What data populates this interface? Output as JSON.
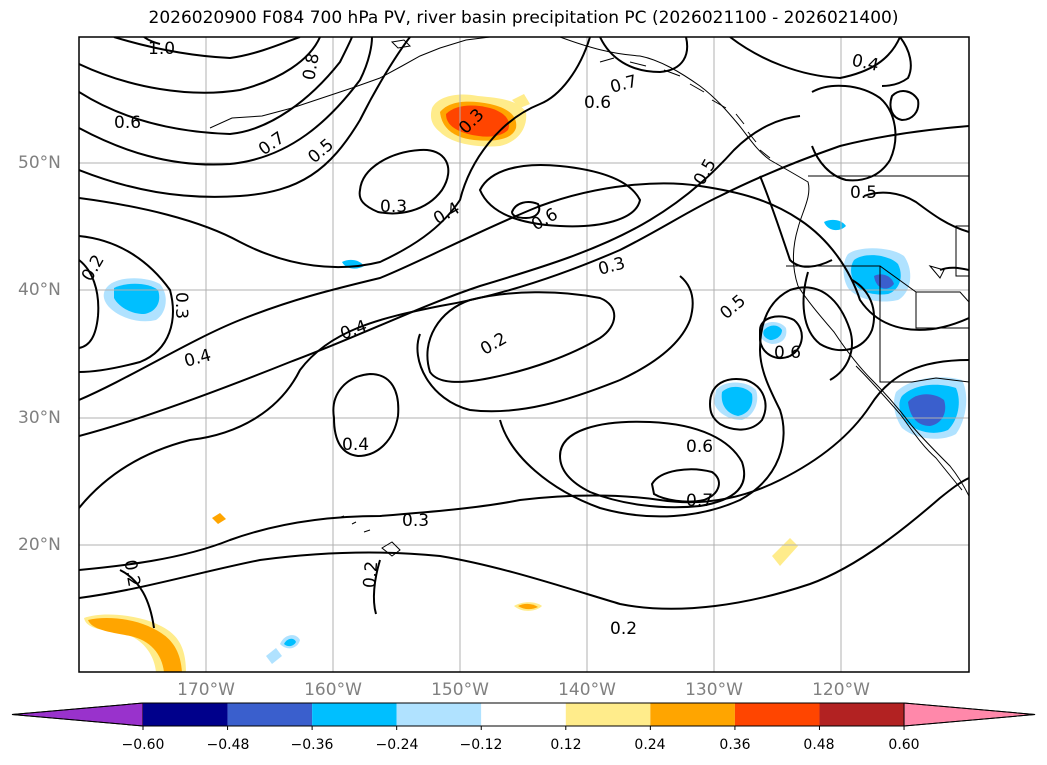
{
  "title": "2026020900 F084 700 hPa PV, river basin precipitation PC (2026021100 - 2026021400)",
  "lat_labels": [
    "50°N",
    "40°N",
    "30°N",
    "20°N"
  ],
  "lon_labels": [
    "170°W",
    "160°W",
    "150°W",
    "140°W",
    "130°W",
    "120°W"
  ],
  "contour_labels": [
    "1.0",
    "0.8",
    "0.7",
    "0.6",
    "0.5",
    "0.3",
    "0.3",
    "0.4",
    "0.6",
    "0.7",
    "0.6",
    "0.4",
    "0.5",
    "0.5",
    "0.2",
    "0.3",
    "0.4",
    "0.4",
    "0.3",
    "0.2",
    "0.5",
    "0.6",
    "0.4",
    "0.6",
    "0.7",
    "0.3",
    "0.2",
    "0.2",
    "0.2"
  ],
  "colorbar": {
    "tick_labels": [
      "−0.60",
      "−0.48",
      "−0.36",
      "−0.24",
      "−0.12",
      "0.12",
      "0.24",
      "0.36",
      "0.48",
      "0.60"
    ],
    "colors": [
      "#9932cc",
      "#00008b",
      "#3a5fcd",
      "#00bfff",
      "#b0e2ff",
      "#ffffff",
      "#ffec8b",
      "#ffa500",
      "#ff4500",
      "#b22222",
      "#ff88aa"
    ]
  }
}
